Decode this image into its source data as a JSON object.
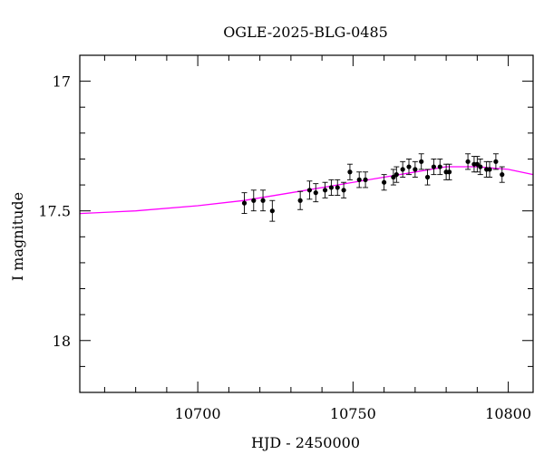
{
  "chart_data": {
    "type": "scatter",
    "title": "OGLE-2025-BLG-0485",
    "xlabel": "HJD - 2450000",
    "ylabel": "I magnitude",
    "xlim": [
      10662,
      10808
    ],
    "ylim": [
      18.2,
      16.9
    ],
    "y_inverted": true,
    "x_ticks": [
      10700,
      10750,
      10800
    ],
    "y_ticks": [
      17,
      17.5,
      18
    ],
    "x_tick_labels": [
      "10700",
      "10750",
      "10800"
    ],
    "y_tick_labels": [
      "17",
      "17.5",
      "18"
    ],
    "grid": false,
    "series": [
      {
        "kind": "points_with_errorbars",
        "color": "#000000",
        "points": [
          {
            "x": 10715,
            "y": 17.47,
            "err": 0.04
          },
          {
            "x": 10718,
            "y": 17.46,
            "err": 0.04
          },
          {
            "x": 10721,
            "y": 17.46,
            "err": 0.04
          },
          {
            "x": 10724,
            "y": 17.5,
            "err": 0.04
          },
          {
            "x": 10733,
            "y": 17.46,
            "err": 0.035
          },
          {
            "x": 10736,
            "y": 17.42,
            "err": 0.035
          },
          {
            "x": 10738,
            "y": 17.43,
            "err": 0.035
          },
          {
            "x": 10741,
            "y": 17.42,
            "err": 0.03
          },
          {
            "x": 10743,
            "y": 17.41,
            "err": 0.03
          },
          {
            "x": 10745,
            "y": 17.41,
            "err": 0.03
          },
          {
            "x": 10747,
            "y": 17.42,
            "err": 0.03
          },
          {
            "x": 10749,
            "y": 17.35,
            "err": 0.03
          },
          {
            "x": 10752,
            "y": 17.38,
            "err": 0.03
          },
          {
            "x": 10754,
            "y": 17.38,
            "err": 0.03
          },
          {
            "x": 10760,
            "y": 17.39,
            "err": 0.03
          },
          {
            "x": 10763,
            "y": 17.37,
            "err": 0.03
          },
          {
            "x": 10764,
            "y": 17.36,
            "err": 0.03
          },
          {
            "x": 10766,
            "y": 17.34,
            "err": 0.03
          },
          {
            "x": 10768,
            "y": 17.33,
            "err": 0.03
          },
          {
            "x": 10770,
            "y": 17.34,
            "err": 0.03
          },
          {
            "x": 10772,
            "y": 17.31,
            "err": 0.03
          },
          {
            "x": 10774,
            "y": 17.37,
            "err": 0.03
          },
          {
            "x": 10776,
            "y": 17.33,
            "err": 0.03
          },
          {
            "x": 10778,
            "y": 17.33,
            "err": 0.03
          },
          {
            "x": 10780,
            "y": 17.35,
            "err": 0.03
          },
          {
            "x": 10781,
            "y": 17.35,
            "err": 0.03
          },
          {
            "x": 10787,
            "y": 17.31,
            "err": 0.03
          },
          {
            "x": 10789,
            "y": 17.32,
            "err": 0.03
          },
          {
            "x": 10790,
            "y": 17.32,
            "err": 0.03
          },
          {
            "x": 10791,
            "y": 17.33,
            "err": 0.03
          },
          {
            "x": 10793,
            "y": 17.34,
            "err": 0.03
          },
          {
            "x": 10794,
            "y": 17.34,
            "err": 0.03
          },
          {
            "x": 10796,
            "y": 17.31,
            "err": 0.03
          },
          {
            "x": 10798,
            "y": 17.36,
            "err": 0.03
          }
        ]
      },
      {
        "kind": "model_curve",
        "color": "#ff00ff",
        "x": [
          10662,
          10680,
          10700,
          10715,
          10730,
          10745,
          10760,
          10770,
          10780,
          10790,
          10800,
          10808
        ],
        "y": [
          17.51,
          17.5,
          17.48,
          17.46,
          17.43,
          17.4,
          17.37,
          17.35,
          17.33,
          17.33,
          17.34,
          17.36
        ]
      }
    ]
  }
}
